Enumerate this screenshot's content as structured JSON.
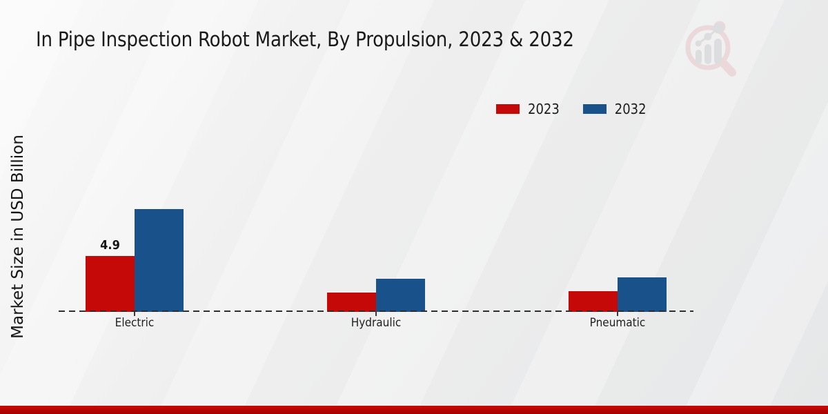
{
  "chart_data": {
    "type": "bar",
    "title": "In Pipe Inspection Robot Market, By Propulsion, 2023 & 2032",
    "ylabel": "Market Size in USD Billion",
    "xlabel": "",
    "categories": [
      "Electric",
      "Hydraulic",
      "Pneumatic"
    ],
    "series": [
      {
        "name": "2023",
        "color": "#c50808",
        "values": [
          4.9,
          1.7,
          1.8
        ]
      },
      {
        "name": "2032",
        "color": "#19518b",
        "values": [
          9.0,
          2.9,
          3.0
        ]
      }
    ],
    "annotations": [
      {
        "category": "Electric",
        "series": "2023",
        "text": "4.9"
      }
    ],
    "ylim": [
      0,
      10
    ],
    "grid": false,
    "legend_position": "top-right",
    "baseline_style": "dashed"
  },
  "watermark": {
    "icon": "magnifier-bar-chart-icon"
  },
  "footer": {
    "band_color": "#b40505"
  }
}
